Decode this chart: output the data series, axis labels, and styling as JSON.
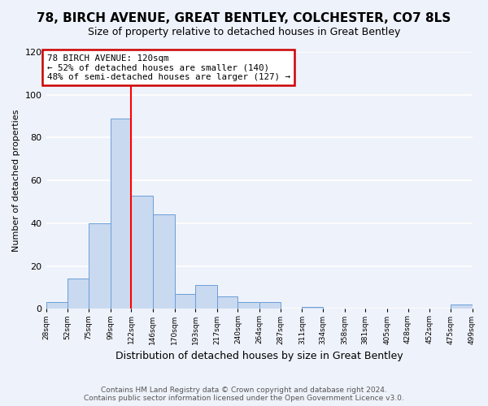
{
  "title": "78, BIRCH AVENUE, GREAT BENTLEY, COLCHESTER, CO7 8LS",
  "subtitle": "Size of property relative to detached houses in Great Bentley",
  "xlabel": "Distribution of detached houses by size in Great Bentley",
  "ylabel": "Number of detached properties",
  "bin_edges": [
    28,
    52,
    75,
    99,
    122,
    146,
    170,
    193,
    217,
    240,
    264,
    287,
    311,
    334,
    358,
    381,
    405,
    428,
    452,
    475,
    499
  ],
  "bar_heights": [
    3,
    14,
    40,
    89,
    53,
    44,
    7,
    11,
    6,
    3,
    3,
    0,
    1,
    0,
    0,
    0,
    0,
    0,
    0,
    2
  ],
  "bar_color": "#c9d9f0",
  "bar_edge_color": "#6a9fd8",
  "red_line_x": 122,
  "annotation_title": "78 BIRCH AVENUE: 120sqm",
  "annotation_line1": "← 52% of detached houses are smaller (140)",
  "annotation_line2": "48% of semi-detached houses are larger (127) →",
  "annotation_box_color": "#ffffff",
  "annotation_box_edge_color": "#cc0000",
  "ylim": [
    0,
    120
  ],
  "yticks": [
    0,
    20,
    40,
    60,
    80,
    100,
    120
  ],
  "footer_line1": "Contains HM Land Registry data © Crown copyright and database right 2024.",
  "footer_line2": "Contains public sector information licensed under the Open Government Licence v3.0.",
  "background_color": "#eef2fa",
  "grid_color": "#ffffff",
  "tick_labels": [
    "28sqm",
    "52sqm",
    "75sqm",
    "99sqm",
    "122sqm",
    "146sqm",
    "170sqm",
    "193sqm",
    "217sqm",
    "240sqm",
    "264sqm",
    "287sqm",
    "311sqm",
    "334sqm",
    "358sqm",
    "381sqm",
    "405sqm",
    "428sqm",
    "452sqm",
    "475sqm",
    "499sqm"
  ],
  "title_fontsize": 11,
  "subtitle_fontsize": 9,
  "xlabel_fontsize": 9,
  "ylabel_fontsize": 8,
  "footer_fontsize": 6.5
}
